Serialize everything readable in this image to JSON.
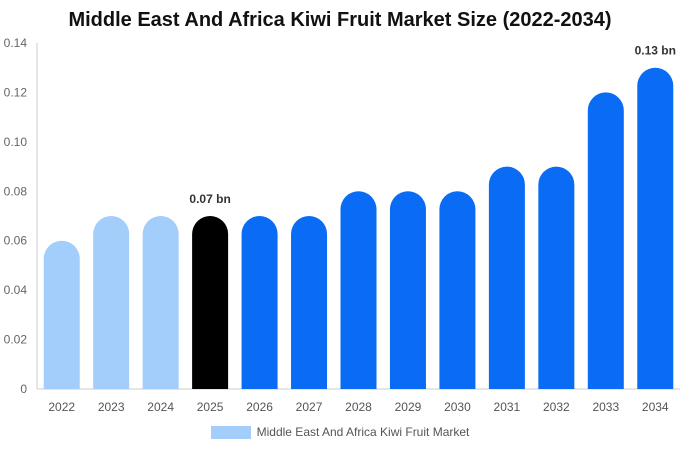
{
  "chart_data": {
    "type": "bar",
    "title": "Middle East And Africa Kiwi Fruit Market Size (2022-2034)",
    "categories": [
      "2022",
      "2023",
      "2024",
      "2025",
      "2026",
      "2027",
      "2028",
      "2029",
      "2030",
      "2031",
      "2032",
      "2033",
      "2034"
    ],
    "series": [
      {
        "name": "Middle East And Africa Kiwi Fruit Market",
        "values": [
          0.06,
          0.07,
          0.07,
          0.07,
          0.07,
          0.07,
          0.08,
          0.08,
          0.08,
          0.09,
          0.09,
          0.12,
          0.13
        ]
      }
    ],
    "bar_colors": [
      "#a3cdfb",
      "#a3cdfb",
      "#a3cdfb",
      "#000000",
      "#0a6cf5",
      "#0a6cf5",
      "#0a6cf5",
      "#0a6cf5",
      "#0a6cf5",
      "#0a6cf5",
      "#0a6cf5",
      "#0a6cf5",
      "#0a6cf5"
    ],
    "legend_color": "#a3cdfb",
    "data_labels": [
      {
        "index": 3,
        "text": "0.07 bn"
      },
      {
        "index": 12,
        "text": "0.13 bn"
      }
    ],
    "y_ticks": [
      "0",
      "0.02",
      "0.04",
      "0.06",
      "0.08",
      "0.10",
      "0.12",
      "0.14"
    ],
    "ylim": [
      0,
      0.14
    ],
    "grid": false,
    "legend_position": "bottom-center"
  }
}
